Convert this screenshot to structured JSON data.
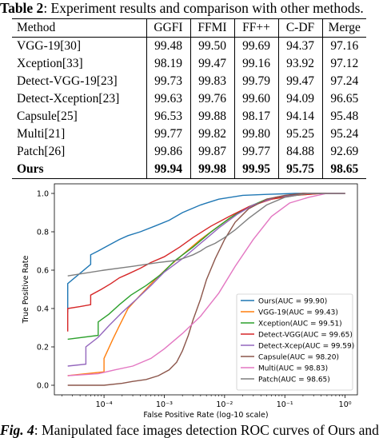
{
  "table_caption": {
    "label": "Table 2",
    "text": ": Experiment results and comparison with other methods."
  },
  "table": {
    "headers": [
      "Method",
      "GGFI",
      "FFMI",
      "FF++",
      "C-DF",
      "Merge"
    ],
    "rows": [
      [
        "VGG-19[30]",
        "99.48",
        "99.50",
        "99.69",
        "94.37",
        "97.16"
      ],
      [
        "Xception[33]",
        "98.19",
        "99.47",
        "99.16",
        "93.92",
        "97.12"
      ],
      [
        "Detect-VGG-19[23]",
        "99.73",
        "99.83",
        "99.79",
        "99.47",
        "97.24"
      ],
      [
        "Detect-Xception[23]",
        "99.63",
        "99.76",
        "99.60",
        "94.09",
        "96.65"
      ],
      [
        "Capsule[25]",
        "96.53",
        "99.88",
        "98.17",
        "94.14",
        "95.48"
      ],
      [
        "Multi[21]",
        "99.77",
        "99.82",
        "99.80",
        "95.25",
        "95.24"
      ],
      [
        "Patch[26]",
        "99.86",
        "99.87",
        "99.77",
        "84.88",
        "92.69"
      ],
      [
        "Ours",
        "99.94",
        "99.98",
        "99.95",
        "95.75",
        "98.65"
      ]
    ]
  },
  "chart_data": {
    "type": "line",
    "xlabel": "False Positive Rate (log-10 scale)",
    "ylabel": "True Positive Rate",
    "xscale": "log",
    "xlim": [
      1.5e-05,
      1.6
    ],
    "ylim": [
      -0.05,
      1.05
    ],
    "xticks": [
      {
        "value": 0.0001,
        "label": "10⁻⁴"
      },
      {
        "value": 0.001,
        "label": "10⁻³"
      },
      {
        "value": 0.01,
        "label": "10⁻²"
      },
      {
        "value": 0.1,
        "label": "10⁻¹"
      },
      {
        "value": 1,
        "label": "10⁰"
      }
    ],
    "yticks": [
      0.0,
      0.2,
      0.4,
      0.6,
      0.8,
      1.0
    ],
    "legend_position": "lower right",
    "series": [
      {
        "name": "Ours(AUC = 99.90)",
        "color": "#1f77b4",
        "x": [
          2.5e-05,
          2.5e-05,
          6e-05,
          6e-05,
          8e-05,
          0.00012,
          0.00018,
          0.00025,
          0.0004,
          0.0007,
          0.0012,
          0.002,
          0.004,
          0.008,
          0.02,
          0.05,
          0.15,
          0.4,
          1.0
        ],
        "y": [
          0.38,
          0.53,
          0.63,
          0.68,
          0.7,
          0.73,
          0.76,
          0.78,
          0.8,
          0.83,
          0.86,
          0.9,
          0.94,
          0.97,
          0.99,
          0.995,
          1.0,
          1.0,
          1.0
        ]
      },
      {
        "name": "VGG-19(AUC = 99.43)",
        "color": "#ff7f0e",
        "x": [
          2.5e-05,
          0.0001,
          0.0001,
          0.00014,
          0.00018,
          0.00025,
          0.0004,
          0.0007,
          0.0012,
          0.002,
          0.004,
          0.008,
          0.015,
          0.03,
          0.06,
          0.15,
          0.4,
          1.0
        ],
        "y": [
          0.05,
          0.07,
          0.14,
          0.24,
          0.31,
          0.4,
          0.47,
          0.55,
          0.62,
          0.68,
          0.76,
          0.83,
          0.89,
          0.94,
          0.97,
          0.99,
          1.0,
          1.0
        ]
      },
      {
        "name": "Xception(AUC = 99.51)",
        "color": "#2ca02c",
        "x": [
          2.5e-05,
          8e-05,
          8e-05,
          0.00012,
          0.00018,
          0.00028,
          0.0005,
          0.0009,
          0.0015,
          0.003,
          0.006,
          0.012,
          0.025,
          0.05,
          0.12,
          0.3,
          1.0
        ],
        "y": [
          0.24,
          0.26,
          0.33,
          0.37,
          0.42,
          0.47,
          0.52,
          0.58,
          0.65,
          0.72,
          0.8,
          0.87,
          0.93,
          0.97,
          0.99,
          1.0,
          1.0
        ]
      },
      {
        "name": "Detect-VGG(AUC = 99.65)",
        "color": "#d62728",
        "x": [
          2.5e-05,
          2.5e-05,
          4e-05,
          6e-05,
          6e-05,
          9e-05,
          0.00013,
          0.00018,
          0.00025,
          0.0004,
          0.0006,
          0.001,
          0.0018,
          0.003,
          0.006,
          0.012,
          0.025,
          0.06,
          0.15,
          0.4,
          1.0
        ],
        "y": [
          0.28,
          0.4,
          0.41,
          0.42,
          0.47,
          0.5,
          0.53,
          0.56,
          0.58,
          0.61,
          0.64,
          0.67,
          0.72,
          0.77,
          0.83,
          0.88,
          0.93,
          0.97,
          0.99,
          1.0,
          1.0
        ]
      },
      {
        "name": "Detect-Xcep(AUC = 99.59)",
        "color": "#9467bd",
        "x": [
          2.5e-05,
          5e-05,
          5e-05,
          8e-05,
          0.00012,
          0.0002,
          0.00035,
          0.0006,
          0.001,
          0.002,
          0.004,
          0.008,
          0.016,
          0.03,
          0.07,
          0.2,
          1.0
        ],
        "y": [
          0.1,
          0.11,
          0.2,
          0.25,
          0.31,
          0.38,
          0.45,
          0.52,
          0.59,
          0.66,
          0.74,
          0.82,
          0.89,
          0.94,
          0.98,
          1.0,
          1.0
        ]
      },
      {
        "name": "Capsule(AUC = 98.20)",
        "color": "#8c564b",
        "x": [
          2.5e-05,
          0.0001,
          0.0002,
          0.0003,
          0.0005,
          0.0008,
          0.0012,
          0.0016,
          0.002,
          0.0025,
          0.003,
          0.004,
          0.005,
          0.007,
          0.01,
          0.015,
          0.025,
          0.05,
          0.1,
          0.2,
          0.4,
          1.0
        ],
        "y": [
          0.0,
          0.0,
          0.01,
          0.02,
          0.03,
          0.05,
          0.08,
          0.12,
          0.18,
          0.26,
          0.34,
          0.45,
          0.55,
          0.66,
          0.76,
          0.85,
          0.92,
          0.97,
          0.99,
          1.0,
          1.0,
          1.0
        ]
      },
      {
        "name": "Multi(AUC = 98.83)",
        "color": "#e377c2",
        "x": [
          2.5e-05,
          8e-05,
          0.00015,
          0.0003,
          0.0006,
          0.001,
          0.002,
          0.004,
          0.008,
          0.015,
          0.03,
          0.06,
          0.12,
          0.25,
          0.5,
          1.0
        ],
        "y": [
          0.05,
          0.06,
          0.08,
          0.1,
          0.14,
          0.19,
          0.27,
          0.36,
          0.48,
          0.62,
          0.76,
          0.88,
          0.95,
          0.98,
          1.0,
          1.0
        ]
      },
      {
        "name": "Patch(AUC = 98.65)",
        "color": "#7f7f7f",
        "x": [
          2.5e-05,
          0.0001,
          0.0003,
          0.0008,
          0.0015,
          0.002,
          0.003,
          0.004,
          0.005,
          0.007,
          0.01,
          0.015,
          0.025,
          0.05,
          0.1,
          0.25,
          1.0
        ],
        "y": [
          0.57,
          0.6,
          0.62,
          0.64,
          0.65,
          0.66,
          0.68,
          0.7,
          0.72,
          0.74,
          0.77,
          0.81,
          0.87,
          0.94,
          0.98,
          1.0,
          1.0
        ]
      }
    ]
  },
  "figure_caption": {
    "label": "Fig. 4",
    "text": ": Manipulated face images detection ROC curves of Ours and"
  }
}
